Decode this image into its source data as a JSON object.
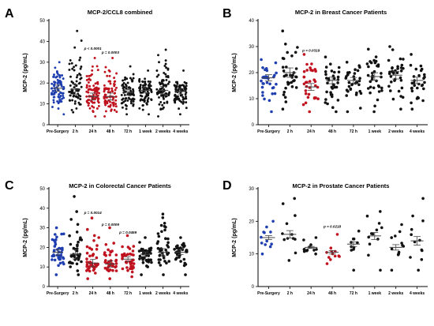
{
  "colors": {
    "blue": "#1f3fb0",
    "red": "#c0121f",
    "black": "#111111"
  },
  "chart_data": [
    {
      "type": "scatter",
      "panel_label": "A",
      "title": "MCP-2/CCL8 combined",
      "ylabel": "MCP-2 (pg/mL)",
      "ylim": [
        0,
        50
      ],
      "yticks": [
        0,
        10,
        20,
        30,
        40,
        50
      ],
      "categories": [
        "Pre-Surgery",
        "2 h",
        "24 h",
        "48 h",
        "72 h",
        "1 week",
        "2 weeks",
        "4 weeks"
      ],
      "point_colors": [
        "blue",
        "black",
        "red",
        "red",
        "black",
        "black",
        "black",
        "black"
      ],
      "n": [
        80,
        70,
        85,
        80,
        70,
        80,
        85,
        80
      ],
      "means": [
        17.5,
        17.0,
        13.5,
        13.5,
        15.5,
        16.5,
        16.5,
        16.0
      ],
      "ranges": [
        [
          5,
          30
        ],
        [
          6,
          45
        ],
        [
          4,
          32
        ],
        [
          4,
          32
        ],
        [
          5,
          28
        ],
        [
          5,
          26
        ],
        [
          4,
          36
        ],
        [
          5,
          26
        ]
      ],
      "annotations": [
        {
          "category": "24 h",
          "text": "p < 0.0001",
          "y": 36
        },
        {
          "category": "48 h",
          "text": "p = 0.0003",
          "y": 34
        }
      ]
    },
    {
      "type": "scatter",
      "panel_label": "B",
      "title": "MCP-2 in Breast Cancer Patients",
      "ylabel": "MCP-2 (pg/mL)",
      "ylim": [
        0,
        40
      ],
      "yticks": [
        0,
        10,
        20,
        30,
        40
      ],
      "categories": [
        "Pre-Surgery",
        "2 h",
        "24 h",
        "48 h",
        "72 h",
        "1 week",
        "2 weeks",
        "4 weeks"
      ],
      "point_colors": [
        "blue",
        "black",
        "red",
        "black",
        "black",
        "black",
        "black",
        "black"
      ],
      "n": [
        35,
        35,
        35,
        35,
        35,
        35,
        35,
        30
      ],
      "means": [
        18.0,
        20.0,
        14.5,
        17.0,
        17.0,
        18.5,
        19.0,
        17.0
      ],
      "ranges": [
        [
          5,
          25
        ],
        [
          6,
          36
        ],
        [
          5,
          27
        ],
        [
          5,
          26
        ],
        [
          5,
          24
        ],
        [
          5,
          29
        ],
        [
          6,
          30
        ],
        [
          6,
          27
        ]
      ],
      "annotations": [
        {
          "category": "24 h",
          "text": "p = 0.0319",
          "y": 28
        }
      ]
    },
    {
      "type": "scatter",
      "panel_label": "C",
      "title": "MCP-2 in Colorectal Cancer Patients",
      "ylabel": "MCP-2 (pg/mL)",
      "ylim": [
        0,
        50
      ],
      "yticks": [
        0,
        10,
        20,
        30,
        40,
        50
      ],
      "categories": [
        "Pre-Surgery",
        "2 h",
        "24 h",
        "48 h",
        "72 h",
        "1 week",
        "2 weeks",
        "4 weeks"
      ],
      "point_colors": [
        "blue",
        "black",
        "red",
        "red",
        "red",
        "black",
        "black",
        "black"
      ],
      "n": [
        40,
        40,
        45,
        40,
        40,
        40,
        40,
        35
      ],
      "means": [
        17.5,
        16.5,
        12.0,
        11.5,
        14.0,
        16.5,
        17.5,
        17.5
      ],
      "ranges": [
        [
          6,
          30
        ],
        [
          6,
          46
        ],
        [
          4,
          35
        ],
        [
          4,
          30
        ],
        [
          5,
          26
        ],
        [
          6,
          25
        ],
        [
          6,
          37
        ],
        [
          6,
          25
        ]
      ],
      "annotations": [
        {
          "category": "24 h",
          "text": "p = 0.0014",
          "y": 37
        },
        {
          "category": "48 h",
          "text": "p = 0.0009",
          "y": 31
        },
        {
          "category": "72 h",
          "text": "p = 0.0459",
          "y": 27
        }
      ]
    },
    {
      "type": "scatter",
      "panel_label": "D",
      "title": "MCP-2 in Prostate Cancer Patients",
      "ylabel": "MCP-2 (pg/mL)",
      "ylim": [
        0,
        30
      ],
      "yticks": [
        0,
        10,
        20,
        30
      ],
      "categories": [
        "Pre-Surgery",
        "2 h",
        "24 h",
        "48 h",
        "72 h",
        "1 week",
        "2 weeks",
        "4 weeks"
      ],
      "point_colors": [
        "blue",
        "black",
        "black",
        "red",
        "black",
        "black",
        "black",
        "black"
      ],
      "n": [
        12,
        12,
        12,
        12,
        10,
        12,
        12,
        12
      ],
      "means": [
        15.0,
        16.0,
        12.0,
        10.5,
        13.0,
        15.5,
        12.0,
        14.0
      ],
      "ranges": [
        [
          10,
          20
        ],
        [
          8,
          27
        ],
        [
          10,
          15
        ],
        [
          7,
          16
        ],
        [
          5,
          17
        ],
        [
          5,
          23
        ],
        [
          5,
          19
        ],
        [
          5,
          27
        ]
      ],
      "annotations": [
        {
          "category": "48 h",
          "text": "p = 0.0218",
          "y": 18
        }
      ]
    }
  ]
}
